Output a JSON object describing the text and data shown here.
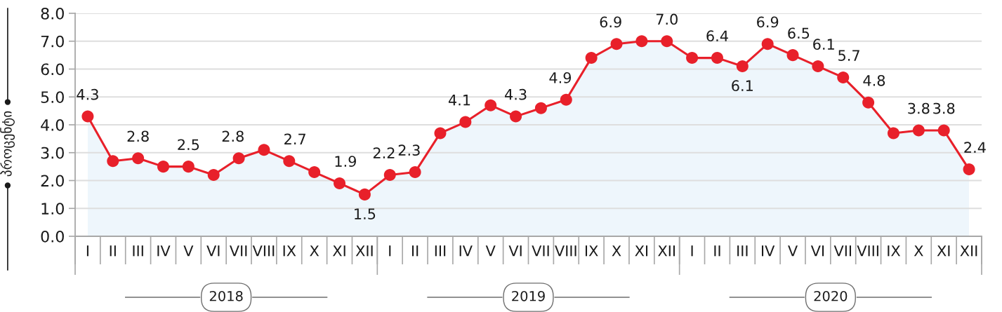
{
  "chart_data": {
    "type": "area",
    "ylabel": "პროცენტი",
    "categories": [
      "I",
      "II",
      "III",
      "IV",
      "V",
      "VI",
      "VII",
      "VIII",
      "IX",
      "X",
      "XI",
      "XII",
      "I",
      "II",
      "III",
      "IV",
      "V",
      "VI",
      "VII",
      "VIII",
      "IX",
      "X",
      "XI",
      "XII",
      "I",
      "II",
      "III",
      "IV",
      "V",
      "VI",
      "VII",
      "VIII",
      "IX",
      "X",
      "XI",
      "XII"
    ],
    "series": [
      {
        "color": "#eef6fc",
        "values": [
          4.3,
          2.7,
          2.8,
          2.5,
          2.5,
          2.2,
          2.8,
          3.1,
          2.7,
          2.3,
          1.9,
          1.5,
          2.2,
          2.3,
          3.7,
          4.1,
          4.7,
          4.3,
          4.6,
          4.9,
          6.4,
          6.9,
          7.0,
          7.0,
          6.4,
          6.4,
          6.1,
          6.9,
          6.5,
          6.1,
          5.7,
          4.8,
          3.7,
          3.8,
          3.8,
          2.4
        ],
        "value_labels": [
          "4.3",
          null,
          "2.8",
          null,
          "2.5",
          null,
          "2.8",
          null,
          "2.7",
          null,
          "1.9",
          "1.5",
          "2.2",
          "2.3",
          null,
          "4.1",
          null,
          "4.3",
          null,
          "4.9",
          null,
          "6.9",
          null,
          "7.0",
          null,
          "6.4",
          "6.1",
          "6.9",
          "6.5",
          "6.1",
          "5.7",
          "4.8",
          null,
          "3.8",
          "3.8",
          "2.4"
        ]
      }
    ],
    "ylim": [
      0,
      8
    ],
    "yticks": [
      {
        "value": 0,
        "label": "0.0"
      },
      {
        "value": 1,
        "label": "1.0"
      },
      {
        "value": 2,
        "label": "2.0"
      },
      {
        "value": 3,
        "label": "3.0"
      },
      {
        "value": 4,
        "label": "4.0"
      },
      {
        "value": 5,
        "label": "5.0"
      },
      {
        "value": 6,
        "label": "6.0"
      },
      {
        "value": 7,
        "label": "7.0"
      },
      {
        "value": 8,
        "label": "8.0"
      }
    ],
    "grid": "y",
    "marker": "circle",
    "line_style": "solid",
    "annotations": [
      "2018",
      "2019",
      "2020"
    ]
  }
}
